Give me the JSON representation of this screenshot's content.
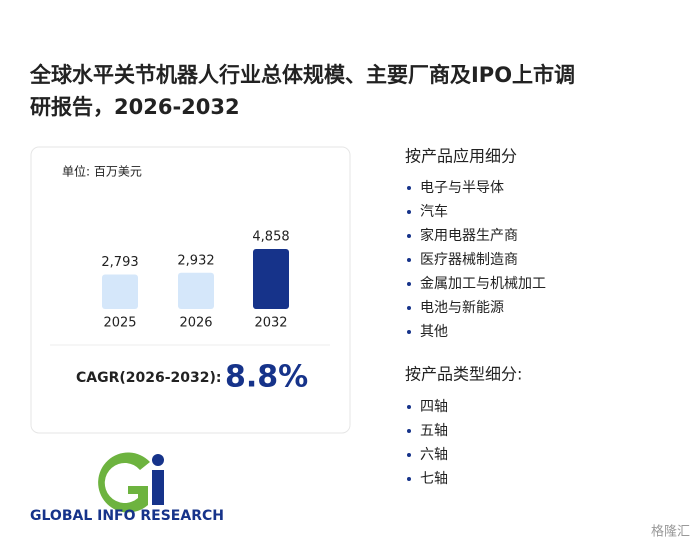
{
  "header": {
    "title_line1": "全球水平关节机器人行业总体规模、主要厂商及IPO上市调",
    "title_line2": "研报告，2026-2032"
  },
  "chart_data": {
    "type": "bar",
    "unit": "单位: 百万美元",
    "categories": [
      "2025",
      "2026",
      "2032"
    ],
    "values": [
      2793,
      2932,
      4858
    ],
    "value_labels": [
      "2,793",
      "2,932",
      "4,858"
    ],
    "colors": [
      "#d5e7fa",
      "#d5e7fa",
      "#16338a"
    ]
  },
  "cagr": {
    "label": "CAGR(2026-2032):",
    "value": "8.8%"
  },
  "application": {
    "heading": "按产品应用细分",
    "items": [
      "电子与半导体",
      "汽车",
      "家用电器生产商",
      "医疗器械制造商",
      "金属加工与机械加工",
      "电池与新能源",
      "其他"
    ]
  },
  "product_type": {
    "heading": "按产品类型细分:",
    "items": [
      "四轴",
      "五轴",
      "六轴",
      "七轴"
    ]
  },
  "logo": {
    "text": "GLOBAL INFO RESEARCH"
  },
  "watermark": {
    "text": "格隆汇"
  }
}
